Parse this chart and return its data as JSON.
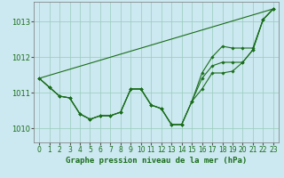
{
  "title": "Graphe pression niveau de la mer (hPa)",
  "background_color": "#cce8f0",
  "grid_color": "#99ccbb",
  "line_color": "#1a6e1a",
  "xlim": [
    -0.5,
    23.5
  ],
  "ylim": [
    1009.6,
    1013.55
  ],
  "yticks": [
    1010,
    1011,
    1012,
    1013
  ],
  "xticks": [
    0,
    1,
    2,
    3,
    4,
    5,
    6,
    7,
    8,
    9,
    10,
    11,
    12,
    13,
    14,
    15,
    16,
    17,
    18,
    19,
    20,
    21,
    22,
    23
  ],
  "series_with_markers": [
    [
      1011.4,
      1011.15,
      1010.9,
      1010.85,
      1010.4,
      1010.25,
      1010.35,
      1010.35,
      1010.45,
      1011.1,
      1011.1,
      1010.65,
      1010.55,
      1010.1,
      1010.1,
      1010.75,
      1011.1,
      1011.55,
      1011.55,
      1011.6,
      1011.85,
      1012.2,
      1013.05,
      1013.35
    ],
    [
      1011.4,
      1011.15,
      1010.9,
      1010.85,
      1010.4,
      1010.25,
      1010.35,
      1010.35,
      1010.45,
      1011.1,
      1011.1,
      1010.65,
      1010.55,
      1010.1,
      1010.1,
      1010.75,
      1011.4,
      1011.75,
      1011.85,
      1011.85,
      1011.85,
      1012.2,
      1013.05,
      1013.35
    ],
    [
      1011.4,
      1011.15,
      1010.9,
      1010.85,
      1010.4,
      1010.25,
      1010.35,
      1010.35,
      1010.45,
      1011.1,
      1011.1,
      1010.65,
      1010.55,
      1010.1,
      1010.1,
      1010.75,
      1011.55,
      1012.0,
      1012.3,
      1012.25,
      1012.25,
      1012.25,
      1013.05,
      1013.35
    ]
  ],
  "diagonal_line": [
    [
      0,
      23
    ],
    [
      1011.4,
      1013.35
    ]
  ],
  "subplots_adjust": [
    0.12,
    0.98,
    0.99,
    0.2
  ]
}
